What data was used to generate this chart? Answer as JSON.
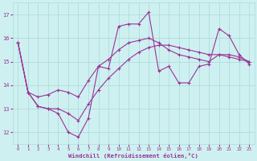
{
  "xlabel": "Windchill (Refroidissement éolien,°C)",
  "bg_color": "#cff0f0",
  "line_color": "#993399",
  "grid_color": "#aadddd",
  "series1_y": [
    15.8,
    13.7,
    13.1,
    13.0,
    12.8,
    12.0,
    11.8,
    12.6,
    14.8,
    14.7,
    16.5,
    16.6,
    16.6,
    17.1,
    14.6,
    14.8,
    14.1,
    14.1,
    14.8,
    14.9,
    16.4,
    16.1,
    15.3,
    14.9
  ],
  "series2_y": [
    15.8,
    13.7,
    13.5,
    13.6,
    13.8,
    13.7,
    13.5,
    14.2,
    14.8,
    15.1,
    15.5,
    15.8,
    15.9,
    16.0,
    15.8,
    15.5,
    15.3,
    15.2,
    15.1,
    15.0,
    15.3,
    15.3,
    15.2,
    15.0
  ],
  "series3_y": [
    15.8,
    13.7,
    13.1,
    13.0,
    13.0,
    12.8,
    12.5,
    13.2,
    13.8,
    14.3,
    14.7,
    15.1,
    15.4,
    15.6,
    15.7,
    15.7,
    15.6,
    15.5,
    15.4,
    15.3,
    15.3,
    15.2,
    15.1,
    15.0
  ],
  "ylim": [
    11.5,
    17.5
  ],
  "xlim": [
    -0.5,
    23.5
  ],
  "yticks": [
    12,
    13,
    14,
    15,
    16,
    17
  ],
  "xticks": [
    0,
    1,
    2,
    3,
    4,
    5,
    6,
    7,
    8,
    9,
    10,
    11,
    12,
    13,
    14,
    15,
    16,
    17,
    18,
    19,
    20,
    21,
    22,
    23
  ]
}
